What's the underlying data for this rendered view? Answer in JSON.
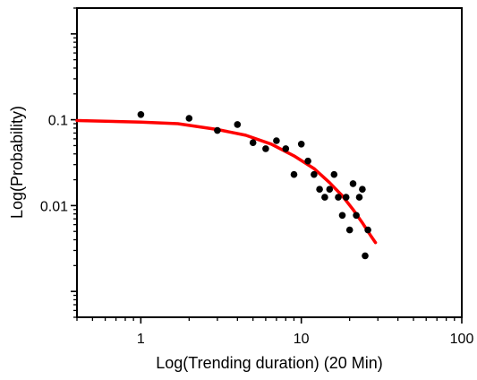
{
  "chart_data": {
    "type": "scatter",
    "xlabel": "Log(Trending duration) (20 Min)",
    "ylabel": "Log(Probability)",
    "x_scale": "log",
    "y_scale": "log",
    "xlim": [
      0.4,
      100
    ],
    "ylim": [
      0.0005,
      2
    ],
    "x_ticks": [
      {
        "value": 1,
        "label": "1"
      },
      {
        "value": 10,
        "label": "10"
      },
      {
        "value": 100,
        "label": "100"
      }
    ],
    "y_ticks": [
      {
        "value": 0.01,
        "label": "0.01"
      },
      {
        "value": 0.1,
        "label": "0.1"
      }
    ],
    "grid": false,
    "series": [
      {
        "kind": "points",
        "color": "#000000",
        "x": [
          1,
          2,
          3,
          4,
          5,
          6,
          7,
          8,
          9,
          10,
          11,
          12,
          13,
          14,
          15,
          16,
          17,
          18,
          19,
          20,
          21,
          22,
          23,
          24,
          25,
          26
        ],
        "y": [
          0.115,
          0.104,
          0.075,
          0.088,
          0.054,
          0.046,
          0.057,
          0.046,
          0.023,
          0.052,
          0.033,
          0.023,
          0.0155,
          0.0125,
          0.0155,
          0.023,
          0.0125,
          0.0077,
          0.0125,
          0.0052,
          0.018,
          0.0077,
          0.0125,
          0.0155,
          0.0026,
          0.0052
        ]
      },
      {
        "kind": "fit",
        "color": "#ff0000",
        "x": [
          0.4,
          1,
          1.7,
          3,
          4.5,
          6.5,
          9,
          12,
          15,
          18,
          21,
          24,
          27,
          29
        ],
        "y": [
          0.098,
          0.094,
          0.09,
          0.077,
          0.066,
          0.052,
          0.038,
          0.027,
          0.0185,
          0.013,
          0.009,
          0.0063,
          0.0045,
          0.0037
        ]
      }
    ]
  }
}
